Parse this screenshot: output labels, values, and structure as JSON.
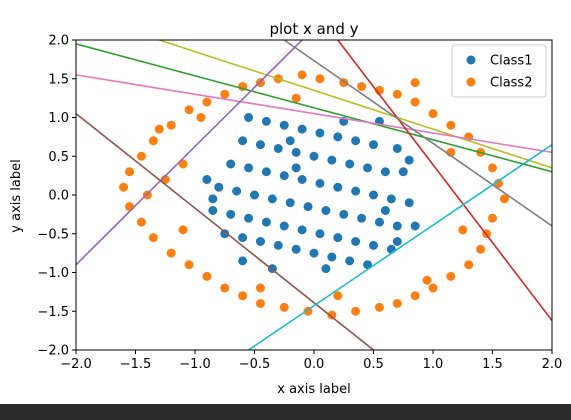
{
  "chart_data": {
    "type": "scatter",
    "title": "plot x and y",
    "xlabel": "x axis label",
    "ylabel": "y axis label",
    "xlim": [
      -2.0,
      2.0
    ],
    "ylim": [
      -2.0,
      2.0
    ],
    "grid": false,
    "legend_position": "top-right",
    "x_ticks": [
      "−2.0",
      "−1.5",
      "−1.0",
      "−0.5",
      "0.0",
      "0.5",
      "1.0",
      "1.5",
      "2.0"
    ],
    "y_ticks": [
      "2.0",
      "1.5",
      "1.0",
      "0.5",
      "0.0",
      "−0.5",
      "−1.0",
      "−1.5",
      "−2.0"
    ],
    "series": [
      {
        "name": "Class1",
        "color": "#1f77b4",
        "points": [
          [
            -0.55,
            1.0
          ],
          [
            -0.4,
            0.95
          ],
          [
            -0.25,
            0.9
          ],
          [
            -0.1,
            0.85
          ],
          [
            0.05,
            0.8
          ],
          [
            0.2,
            0.75
          ],
          [
            0.35,
            0.7
          ],
          [
            0.5,
            0.65
          ],
          [
            -0.6,
            0.7
          ],
          [
            -0.45,
            0.65
          ],
          [
            -0.3,
            0.6
          ],
          [
            -0.15,
            0.55
          ],
          [
            0.0,
            0.5
          ],
          [
            0.15,
            0.45
          ],
          [
            0.3,
            0.4
          ],
          [
            0.45,
            0.35
          ],
          [
            0.6,
            0.3
          ],
          [
            -0.7,
            0.4
          ],
          [
            -0.55,
            0.35
          ],
          [
            -0.4,
            0.3
          ],
          [
            -0.25,
            0.25
          ],
          [
            -0.1,
            0.2
          ],
          [
            0.05,
            0.15
          ],
          [
            0.2,
            0.1
          ],
          [
            0.35,
            0.05
          ],
          [
            0.5,
            0.0
          ],
          [
            0.65,
            -0.05
          ],
          [
            -0.8,
            0.1
          ],
          [
            -0.65,
            0.05
          ],
          [
            -0.5,
            0.0
          ],
          [
            -0.35,
            -0.05
          ],
          [
            -0.2,
            -0.1
          ],
          [
            -0.05,
            -0.15
          ],
          [
            0.1,
            -0.2
          ],
          [
            0.25,
            -0.25
          ],
          [
            0.4,
            -0.3
          ],
          [
            0.55,
            -0.35
          ],
          [
            0.7,
            -0.4
          ],
          [
            -0.85,
            -0.2
          ],
          [
            -0.7,
            -0.25
          ],
          [
            -0.55,
            -0.3
          ],
          [
            -0.4,
            -0.35
          ],
          [
            -0.25,
            -0.4
          ],
          [
            -0.1,
            -0.45
          ],
          [
            0.05,
            -0.5
          ],
          [
            0.2,
            -0.55
          ],
          [
            0.35,
            -0.6
          ],
          [
            0.5,
            -0.65
          ],
          [
            0.65,
            -0.7
          ],
          [
            -0.75,
            -0.5
          ],
          [
            -0.6,
            -0.55
          ],
          [
            -0.45,
            -0.6
          ],
          [
            -0.3,
            -0.65
          ],
          [
            -0.15,
            -0.7
          ],
          [
            0.0,
            -0.75
          ],
          [
            0.15,
            -0.8
          ],
          [
            0.3,
            -0.85
          ],
          [
            0.45,
            -0.9
          ],
          [
            -0.2,
            0.7
          ],
          [
            0.25,
            0.95
          ],
          [
            0.7,
            0.6
          ],
          [
            0.75,
            0.3
          ],
          [
            0.8,
            -0.1
          ],
          [
            0.85,
            -0.4
          ],
          [
            -0.9,
            0.2
          ],
          [
            -0.85,
            -0.05
          ],
          [
            -0.6,
            -0.85
          ],
          [
            -0.35,
            -0.95
          ],
          [
            0.1,
            -0.95
          ],
          [
            0.6,
            -0.2
          ],
          [
            0.8,
            0.45
          ],
          [
            -0.15,
            0.35
          ],
          [
            0.55,
            0.95
          ],
          [
            0.7,
            -0.6
          ]
        ]
      },
      {
        "name": "Class2",
        "color": "#ff7f0e",
        "points": [
          [
            -1.6,
            0.1
          ],
          [
            -1.55,
            0.3
          ],
          [
            -1.45,
            0.5
          ],
          [
            -1.35,
            0.7
          ],
          [
            -1.2,
            0.9
          ],
          [
            -1.05,
            1.1
          ],
          [
            -0.9,
            1.2
          ],
          [
            -0.75,
            1.3
          ],
          [
            -0.6,
            1.4
          ],
          [
            -0.45,
            1.45
          ],
          [
            -0.3,
            1.5
          ],
          [
            -0.1,
            1.55
          ],
          [
            0.05,
            1.5
          ],
          [
            0.25,
            1.45
          ],
          [
            0.4,
            1.4
          ],
          [
            0.55,
            1.35
          ],
          [
            0.7,
            1.3
          ],
          [
            0.85,
            1.2
          ],
          [
            1.0,
            1.05
          ],
          [
            1.15,
            0.9
          ],
          [
            1.3,
            0.75
          ],
          [
            1.4,
            0.55
          ],
          [
            1.5,
            0.35
          ],
          [
            1.55,
            0.15
          ],
          [
            1.6,
            -0.05
          ],
          [
            1.5,
            -0.3
          ],
          [
            1.45,
            -0.5
          ],
          [
            1.4,
            -0.7
          ],
          [
            1.3,
            -0.9
          ],
          [
            1.15,
            -1.05
          ],
          [
            1.0,
            -1.2
          ],
          [
            0.85,
            -1.3
          ],
          [
            0.7,
            -1.4
          ],
          [
            0.55,
            -1.45
          ],
          [
            0.35,
            -1.5
          ],
          [
            0.15,
            -1.55
          ],
          [
            -0.05,
            -1.5
          ],
          [
            -0.25,
            -1.45
          ],
          [
            -0.45,
            -1.4
          ],
          [
            -0.6,
            -1.3
          ],
          [
            -0.75,
            -1.2
          ],
          [
            -0.9,
            -1.05
          ],
          [
            -1.05,
            -0.9
          ],
          [
            -1.2,
            -0.75
          ],
          [
            -1.35,
            -0.55
          ],
          [
            -1.45,
            -0.35
          ],
          [
            -1.55,
            -0.15
          ],
          [
            -1.4,
            0.0
          ],
          [
            -1.25,
            0.2
          ],
          [
            -1.1,
            0.4
          ],
          [
            -0.95,
            1.0
          ],
          [
            0.85,
            1.45
          ],
          [
            1.25,
            -0.45
          ],
          [
            -1.1,
            -0.45
          ],
          [
            0.95,
            -1.1
          ],
          [
            -0.45,
            -1.2
          ],
          [
            1.15,
            0.55
          ],
          [
            -1.3,
            0.85
          ],
          [
            0.2,
            -1.3
          ],
          [
            -0.15,
            1.25
          ]
        ]
      }
    ],
    "lines": [
      {
        "color": "#2ca02c",
        "from": [
          -2.0,
          1.95
        ],
        "to": [
          2.0,
          0.3
        ]
      },
      {
        "color": "#bcbd22",
        "from": [
          -1.3,
          2.0
        ],
        "to": [
          2.0,
          0.35
        ]
      },
      {
        "color": "#e377c2",
        "from": [
          -2.0,
          1.55
        ],
        "to": [
          2.0,
          0.55
        ]
      },
      {
        "color": "#9467bd",
        "from": [
          -2.0,
          -0.9
        ],
        "to": [
          -0.1,
          2.0
        ]
      },
      {
        "color": "#8c564b",
        "from": [
          -2.0,
          1.05
        ],
        "to": [
          0.5,
          -2.0
        ]
      },
      {
        "color": "#d62728",
        "from": [
          0.2,
          2.0
        ],
        "to": [
          2.0,
          -1.62
        ]
      },
      {
        "color": "#7f7f7f",
        "from": [
          -0.25,
          2.0
        ],
        "to": [
          2.0,
          -0.4
        ]
      },
      {
        "color": "#17becf",
        "from": [
          -0.55,
          -2.0
        ],
        "to": [
          2.0,
          0.65
        ]
      }
    ]
  }
}
